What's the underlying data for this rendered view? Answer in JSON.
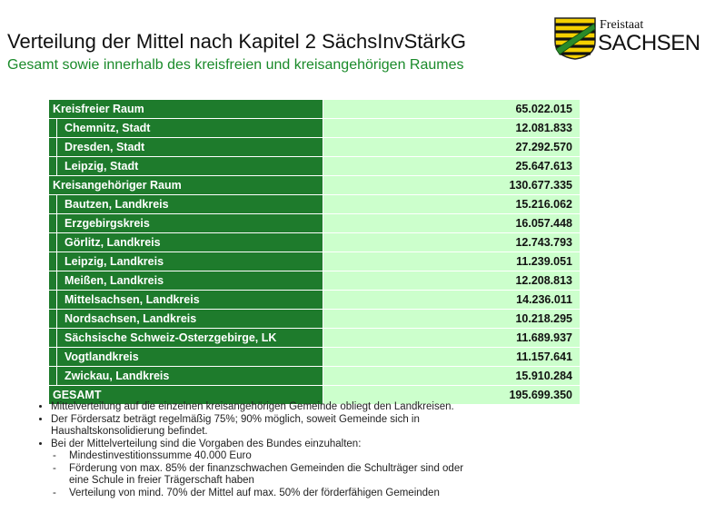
{
  "header": {
    "title": "Verteilung der Mittel nach Kapitel 2 SächsInvStärkG",
    "subtitle": "Gesamt sowie innerhalb des kreisfreien und kreisangehörigen Raumes"
  },
  "logo": {
    "line1": "Freistaat",
    "line2": "SACHSEN"
  },
  "table": {
    "rows": [
      [
        "Kreisfreier Raum",
        "65.022.015"
      ],
      [
        "Chemnitz, Stadt",
        "12.081.833"
      ],
      [
        "Dresden, Stadt",
        "27.292.570"
      ],
      [
        "Leipzig, Stadt",
        "25.647.613"
      ],
      [
        "Kreisangehöriger Raum",
        "130.677.335"
      ],
      [
        "Bautzen, Landkreis",
        "15.216.062"
      ],
      [
        "Erzgebirgskreis",
        "16.057.448"
      ],
      [
        "Görlitz, Landkreis",
        "12.743.793"
      ],
      [
        "Leipzig, Landkreis",
        "11.239.051"
      ],
      [
        "Meißen, Landkreis",
        "12.208.813"
      ],
      [
        "Mittelsachsen, Landkreis",
        "14.236.011"
      ],
      [
        "Nordsachsen, Landkreis",
        "10.218.295"
      ],
      [
        "Sächsische Schweiz-Osterzgebirge, LK",
        "11.689.937"
      ],
      [
        "Vogtlandkreis",
        "11.157.641"
      ],
      [
        "Zwickau, Landkreis",
        "15.910.284"
      ],
      [
        "GESAMT",
        "195.699.350"
      ]
    ]
  },
  "notes": [
    "Mittelverteilung auf die einzelnen kreisangehörigen Gemeinde obliegt den Landkreisen.",
    "Der Fördersatz beträgt regelmäßig 75%; 90% möglich, soweit Gemeinde sich in Haushaltskonsolidierung befindet.",
    "Bei der Mittelverteilung sind die Vorgaben des Bundes einzuhalten:"
  ],
  "subnotes": [
    "Mindestinvestitionssumme 40.000 Euro",
    "Förderung von max. 85% der finanzschwachen Gemeinden die Schulträger sind oder eine Schule in freier Trägerschaft haben",
    "Verteilung von mind. 70% der Mittel auf max. 50% der förderfähigen Gemeinden"
  ]
}
